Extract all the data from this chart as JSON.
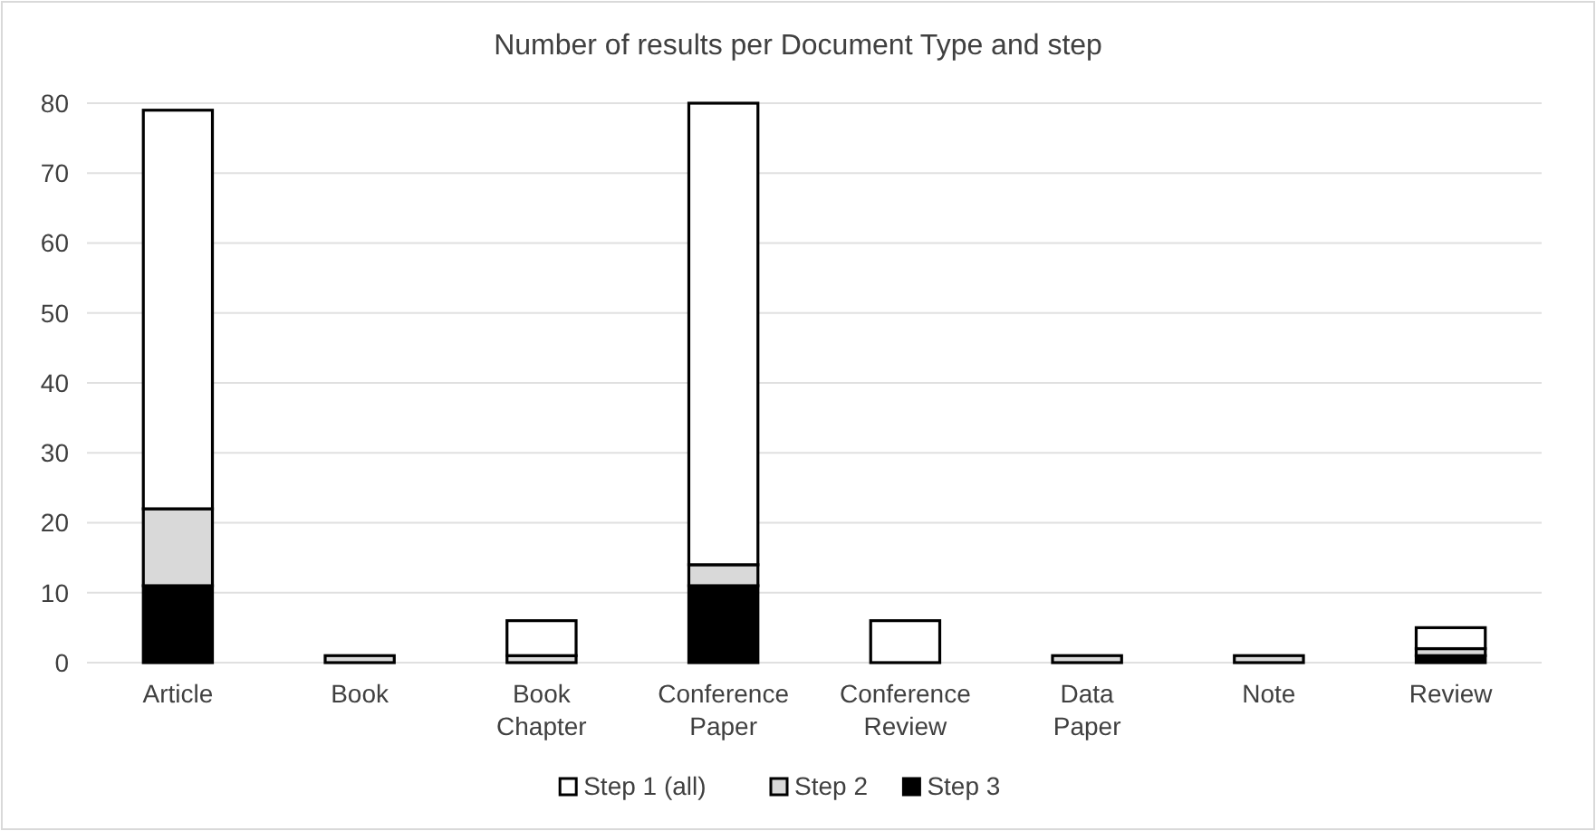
{
  "chart_data": {
    "type": "bar",
    "title": "Number of results per Document Type and step",
    "categories": [
      "Article",
      "Book",
      "Book Chapter",
      "Conference Paper",
      "Conference Review",
      "Data Paper",
      "Note",
      "Review"
    ],
    "stacked": true,
    "series": [
      {
        "name": "Step 3",
        "color": "#000000",
        "values": [
          11,
          0,
          0,
          11,
          0,
          0,
          0,
          1
        ]
      },
      {
        "name": "Step 2",
        "color": "#d9d9d9",
        "values": [
          11,
          1,
          1,
          3,
          0,
          1,
          1,
          1
        ]
      },
      {
        "name": "Step 1 (all)",
        "color": "#ffffff",
        "values": [
          57,
          0,
          5,
          66,
          6,
          0,
          0,
          3
        ]
      }
    ],
    "ylim": [
      0,
      80
    ],
    "yticks": [
      0,
      10,
      20,
      30,
      40,
      50,
      60,
      70,
      80
    ],
    "grid": "y",
    "legend": "bottom"
  }
}
